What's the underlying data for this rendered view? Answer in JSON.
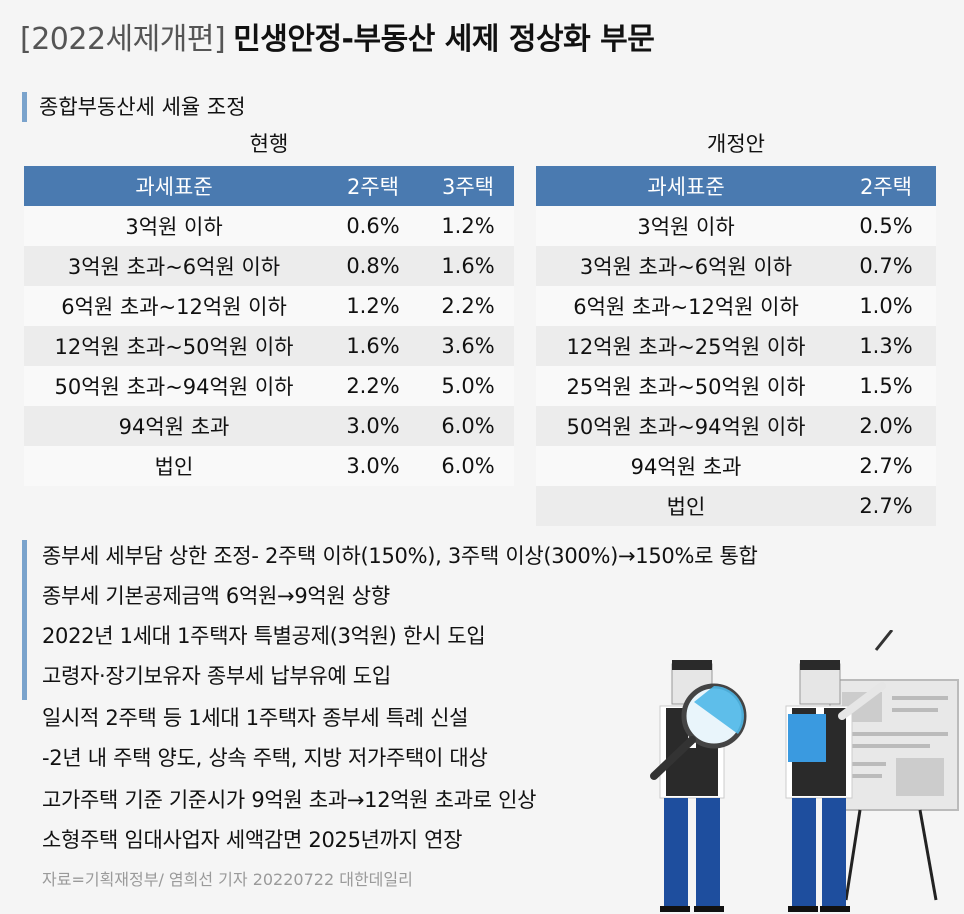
{
  "header": {
    "prefix": "[2022세제개편]",
    "title": "민생안정-부동산 세제 정상화 부문"
  },
  "section_label": "종합부동산세 세율 조정",
  "current": {
    "caption": "현행",
    "columns": [
      "과세표준",
      "2주택",
      "3주택"
    ],
    "rows": [
      [
        "3억원 이하",
        "0.6%",
        "1.2%"
      ],
      [
        "3억원 초과~6억원 이하",
        "0.8%",
        "1.6%"
      ],
      [
        "6억원 초과~12억원 이하",
        "1.2%",
        "2.2%"
      ],
      [
        "12억원 초과~50억원 이하",
        "1.6%",
        "3.6%"
      ],
      [
        "50억원 초과~94억원 이하",
        "2.2%",
        "5.0%"
      ],
      [
        "94억원 초과",
        "3.0%",
        "6.0%"
      ],
      [
        "법인",
        "3.0%",
        "6.0%"
      ]
    ]
  },
  "revised": {
    "caption": "개정안",
    "columns": [
      "과세표준",
      "2주택"
    ],
    "rows": [
      [
        "3억원 이하",
        "0.5%"
      ],
      [
        "3억원 초과~6억원 이하",
        "0.7%"
      ],
      [
        "6억원 초과~12억원 이하",
        "1.0%"
      ],
      [
        "12억원 초과~25억원 이하",
        "1.3%"
      ],
      [
        "25억원 초과~50억원 이하",
        "1.5%"
      ],
      [
        "50억원 초과~94억원 이하",
        "2.0%"
      ],
      [
        "94억원 초과",
        "2.7%"
      ],
      [
        "법인",
        "2.7%"
      ]
    ]
  },
  "notes": [
    "종부세 세부담 상한 조정- 2주택 이하(150%), 3주택 이상(300%)→150%로 통합",
    "종부세 기본공제금액 6억원→9억원 상향",
    "2022년 1세대 1주택자 특별공제(3억원) 한시 도입",
    "고령자·장기보유자 종부세 납부유예 도입",
    "일시적 2주택 등 1세대 1주택자 종부세 특례 신설",
    "-2년 내 주택 양도, 상속 주택, 지방 저가주택이 대상",
    "고가주택 기준 기준시가 9억원 초과→12억원 초과로 인상",
    "소형주택 임대사업자 세액감면 2025년까지 연장"
  ],
  "source": "자료=기획재정부/ 염희선 기자 20220722 대한데일리",
  "colors": {
    "header_blue": "#4a7ab0",
    "accent_bar": "#7aa3cc",
    "row_alt": "#ececec",
    "figure_blue": "#1e4e9e",
    "figure_vest": "#2a2a2a",
    "magnifier_cyan": "#4fb8e8"
  }
}
